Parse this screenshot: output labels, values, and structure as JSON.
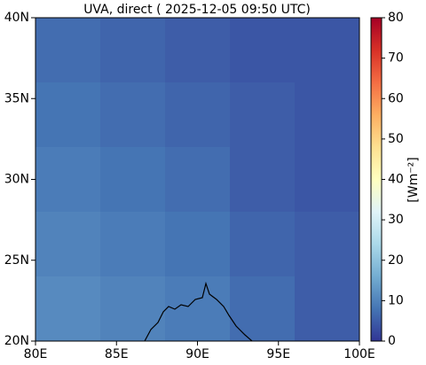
{
  "chart_data": {
    "type": "map",
    "title": "UVA, direct ( 2025-12-05 09:50 UTC)",
    "xlim": [
      80,
      100
    ],
    "xticks": [
      {
        "value": 80,
        "label": "80E"
      },
      {
        "value": 85,
        "label": "85E"
      },
      {
        "value": 90,
        "label": "90E"
      },
      {
        "value": 95,
        "label": "95E"
      },
      {
        "value": 100,
        "label": "100E"
      }
    ],
    "ylim": [
      20,
      40
    ],
    "yticks": [
      {
        "value": 20,
        "label": "20N"
      },
      {
        "value": 25,
        "label": "25N"
      },
      {
        "value": 30,
        "label": "30N"
      },
      {
        "value": 35,
        "label": "35N"
      },
      {
        "value": 40,
        "label": "40N"
      }
    ],
    "values": [
      [
        7,
        6,
        5,
        4,
        4
      ],
      [
        8,
        7,
        6,
        5,
        4
      ],
      [
        9,
        8,
        7,
        5,
        4
      ],
      [
        10,
        9,
        8,
        6,
        5
      ],
      [
        11,
        10,
        9,
        7,
        5
      ]
    ],
    "colormap": "RdYlBu_r",
    "clim": [
      0,
      80
    ],
    "cticks": [
      0,
      10,
      20,
      30,
      40,
      50,
      60,
      70,
      80
    ],
    "colorbar_label": "[Wm⁻²]"
  }
}
